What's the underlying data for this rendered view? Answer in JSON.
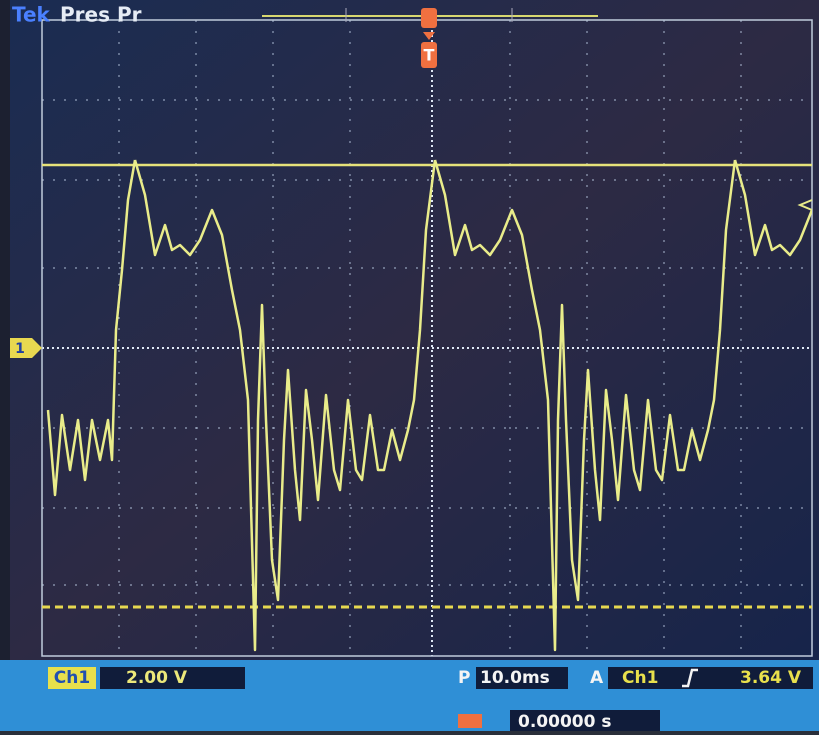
{
  "header": {
    "brand": "Tek",
    "status": "Pres Pr"
  },
  "markers": {
    "trigger": "T",
    "channel": "1"
  },
  "readout": {
    "channel": "Ch1",
    "scale": "2.00 V",
    "time_prefix": "P",
    "time_scale": "10.0ms",
    "trigger_prefix": "A",
    "trigger_channel": "Ch1",
    "trigger_level": "3.64 V",
    "position": "0.00000 s"
  }
}
